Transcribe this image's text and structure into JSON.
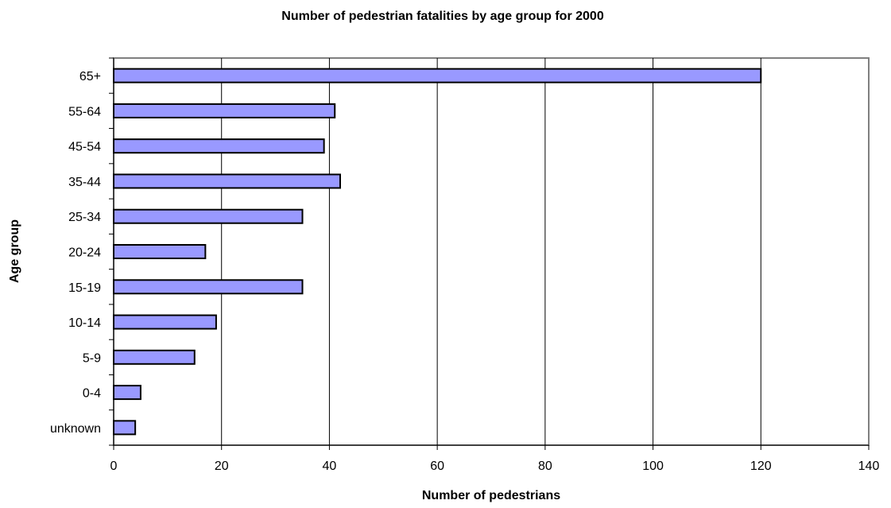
{
  "chart_data": {
    "type": "bar",
    "orientation": "horizontal",
    "title": "Number of pedestrian fatalities by age group for 2000",
    "xlabel": "Number of pedestrians",
    "ylabel": "Age group",
    "categories": [
      "65+",
      "55-64",
      "45-54",
      "35-44",
      "25-34",
      "20-24",
      "15-19",
      "10-14",
      "5-9",
      "0-4",
      "unknown"
    ],
    "values": [
      120,
      41,
      39,
      42,
      35,
      17,
      35,
      19,
      15,
      5,
      4
    ],
    "xlim": [
      0,
      140
    ],
    "xticks": [
      0,
      20,
      40,
      60,
      80,
      100,
      120,
      140
    ],
    "grid": "vertical",
    "legend": "none",
    "bar_color": "#9999ff",
    "bar_edge_color": "#000000"
  }
}
